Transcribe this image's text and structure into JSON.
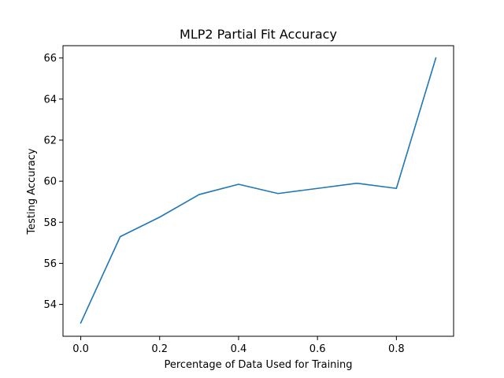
{
  "chart_data": {
    "type": "line",
    "title": "MLP2 Partial Fit Accuracy",
    "xlabel": "Percentage of Data Used for Training",
    "ylabel": "Testing Accuracy",
    "xlim": [
      -0.045,
      0.945
    ],
    "ylim": [
      52.45,
      66.6
    ],
    "xticks": [
      0.0,
      0.2,
      0.4,
      0.6,
      0.8
    ],
    "xtick_labels": [
      "0.0",
      "0.2",
      "0.4",
      "0.6",
      "0.8"
    ],
    "yticks": [
      54,
      56,
      58,
      60,
      62,
      64,
      66
    ],
    "ytick_labels": [
      "54",
      "56",
      "58",
      "60",
      "62",
      "64",
      "66"
    ],
    "grid": false,
    "series": [
      {
        "color": "#1f77b4",
        "x": [
          0.0,
          0.1,
          0.2,
          0.3,
          0.4,
          0.5,
          0.6,
          0.7,
          0.8,
          0.9
        ],
        "y": [
          53.1,
          57.3,
          58.25,
          59.35,
          59.85,
          59.4,
          59.65,
          59.9,
          59.65,
          66.0
        ]
      }
    ]
  }
}
